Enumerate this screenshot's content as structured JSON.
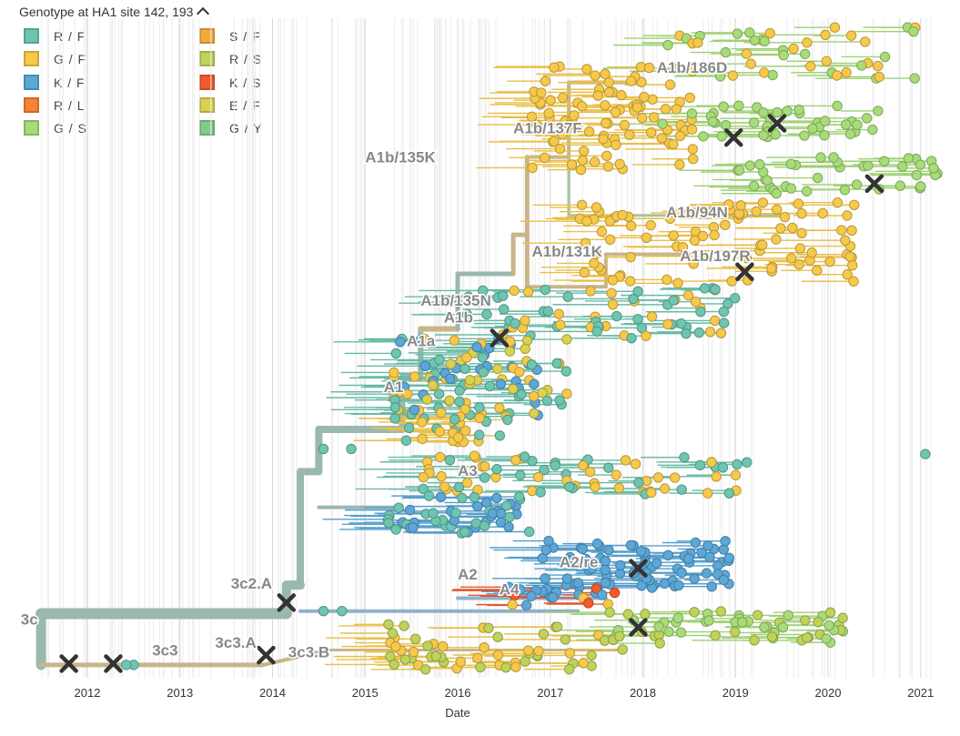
{
  "legend": {
    "title": "Genotype at HA1 site 142, 193",
    "items": [
      {
        "label": "R / F",
        "color": "#6ec5b0"
      },
      {
        "label": "S / F",
        "color": "#f5a93b"
      },
      {
        "label": "G / F",
        "color": "#f6c94a"
      },
      {
        "label": "R / S",
        "color": "#bfd35a"
      },
      {
        "label": "K / F",
        "color": "#5aa7d8"
      },
      {
        "label": "K / S",
        "color": "#f45a2d"
      },
      {
        "label": "R / L",
        "color": "#f58334"
      },
      {
        "label": "E / F",
        "color": "#dcd050"
      },
      {
        "label": "G / S",
        "color": "#a7dc78"
      },
      {
        "label": "G / Y",
        "color": "#7fcd8e"
      }
    ]
  },
  "chart_data": {
    "type": "scatter",
    "title": "",
    "xlabel": "Date",
    "ylabel": "",
    "x_ticks": [
      "2012",
      "2013",
      "2014",
      "2015",
      "2016",
      "2017",
      "2018",
      "2019",
      "2020",
      "2021"
    ],
    "xlim": [
      2011.45,
      2021.45
    ],
    "clade_labels": [
      {
        "label": "A1b/186D",
        "x": 2018.15,
        "row": 0.062
      },
      {
        "label": "A1b/137F",
        "x": 2016.6,
        "row": 0.155
      },
      {
        "label": "A1b/135K",
        "x": 2015.0,
        "row": 0.2
      },
      {
        "label": "A1b/94N",
        "x": 2018.25,
        "row": 0.285
      },
      {
        "label": "A1b/131K",
        "x": 2016.8,
        "row": 0.345
      },
      {
        "label": "A1b/197R",
        "x": 2018.4,
        "row": 0.352
      },
      {
        "label": "A1b/135N",
        "x": 2015.6,
        "row": 0.421
      },
      {
        "label": "A1b",
        "x": 2015.85,
        "row": 0.447
      },
      {
        "label": "A1a",
        "x": 2015.45,
        "row": 0.483
      },
      {
        "label": "A1",
        "x": 2015.2,
        "row": 0.554
      },
      {
        "label": "A3",
        "x": 2016.0,
        "row": 0.683
      },
      {
        "label": "A2/re",
        "x": 2017.1,
        "row": 0.824
      },
      {
        "label": "A2",
        "x": 2016.0,
        "row": 0.843
      },
      {
        "label": "A4",
        "x": 2016.45,
        "row": 0.866
      },
      {
        "label": "3c2.A",
        "x": 2013.55,
        "row": 0.857
      },
      {
        "label": "3c",
        "x": 2011.28,
        "row": 0.912
      },
      {
        "label": "3c3",
        "x": 2012.7,
        "row": 0.96
      },
      {
        "label": "3c3.A",
        "x": 2013.38,
        "row": 0.948
      },
      {
        "label": "3c3.B",
        "x": 2014.17,
        "row": 0.963
      }
    ],
    "mutation_marks": [
      {
        "x": 2011.8,
        "row": 0.981
      },
      {
        "x": 2012.28,
        "row": 0.981
      },
      {
        "x": 2013.93,
        "row": 0.968
      },
      {
        "x": 2014.15,
        "row": 0.887
      },
      {
        "x": 2016.45,
        "row": 0.479
      },
      {
        "x": 2018.98,
        "row": 0.17
      },
      {
        "x": 2019.45,
        "row": 0.148
      },
      {
        "x": 2019.1,
        "row": 0.377
      },
      {
        "x": 2020.5,
        "row": 0.241
      },
      {
        "x": 2017.95,
        "row": 0.834
      },
      {
        "x": 2017.95,
        "row": 0.925
      }
    ]
  }
}
